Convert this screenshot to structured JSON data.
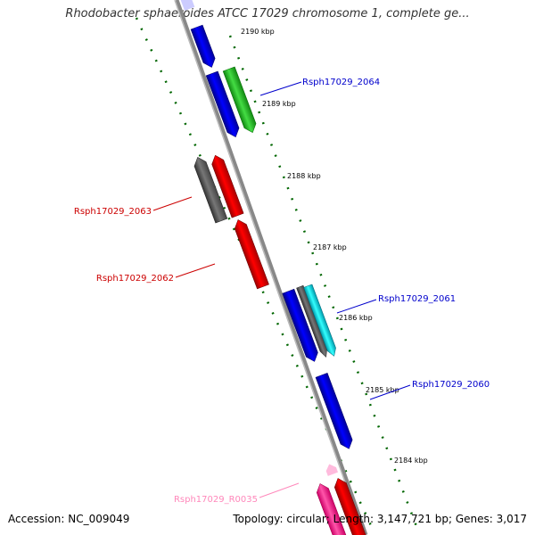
{
  "title": "Rhodobacter sphaeroides ATCC 17029 chromosome 1, complete ge...",
  "footer": {
    "accession": "Accession: NC_009049",
    "summary": "Topology: circular; Length: 3,147,721 bp; Genes: 3,017"
  },
  "kbp_ticks": [
    "2190 kbp",
    "2189 kbp",
    "2188 kbp",
    "2187 kbp",
    "2186 kbp",
    "2185 kbp",
    "2184 kbp"
  ],
  "gene_labels": {
    "g2064": "Rsph17029_2064",
    "g2063": "Rsph17029_2063",
    "g2062": "Rsph17029_2062",
    "g2061": "Rsph17029_2061",
    "g2060": "Rsph17029_2060",
    "r0035": "Rsph17029_R0035"
  },
  "colors": {
    "backbone": "#999999",
    "plus_strand_gene": "#0000ee",
    "minus_strand_gene": "#ee0000",
    "green_gene": "#33cc33",
    "gray_gene": "#666666",
    "cyan_gene": "#00ccdd",
    "rna_gene": "#ff3399",
    "gc_dots": "#006600",
    "label_blue": "#0000cc",
    "label_red": "#cc0000",
    "label_pink": "#ff88bb"
  }
}
